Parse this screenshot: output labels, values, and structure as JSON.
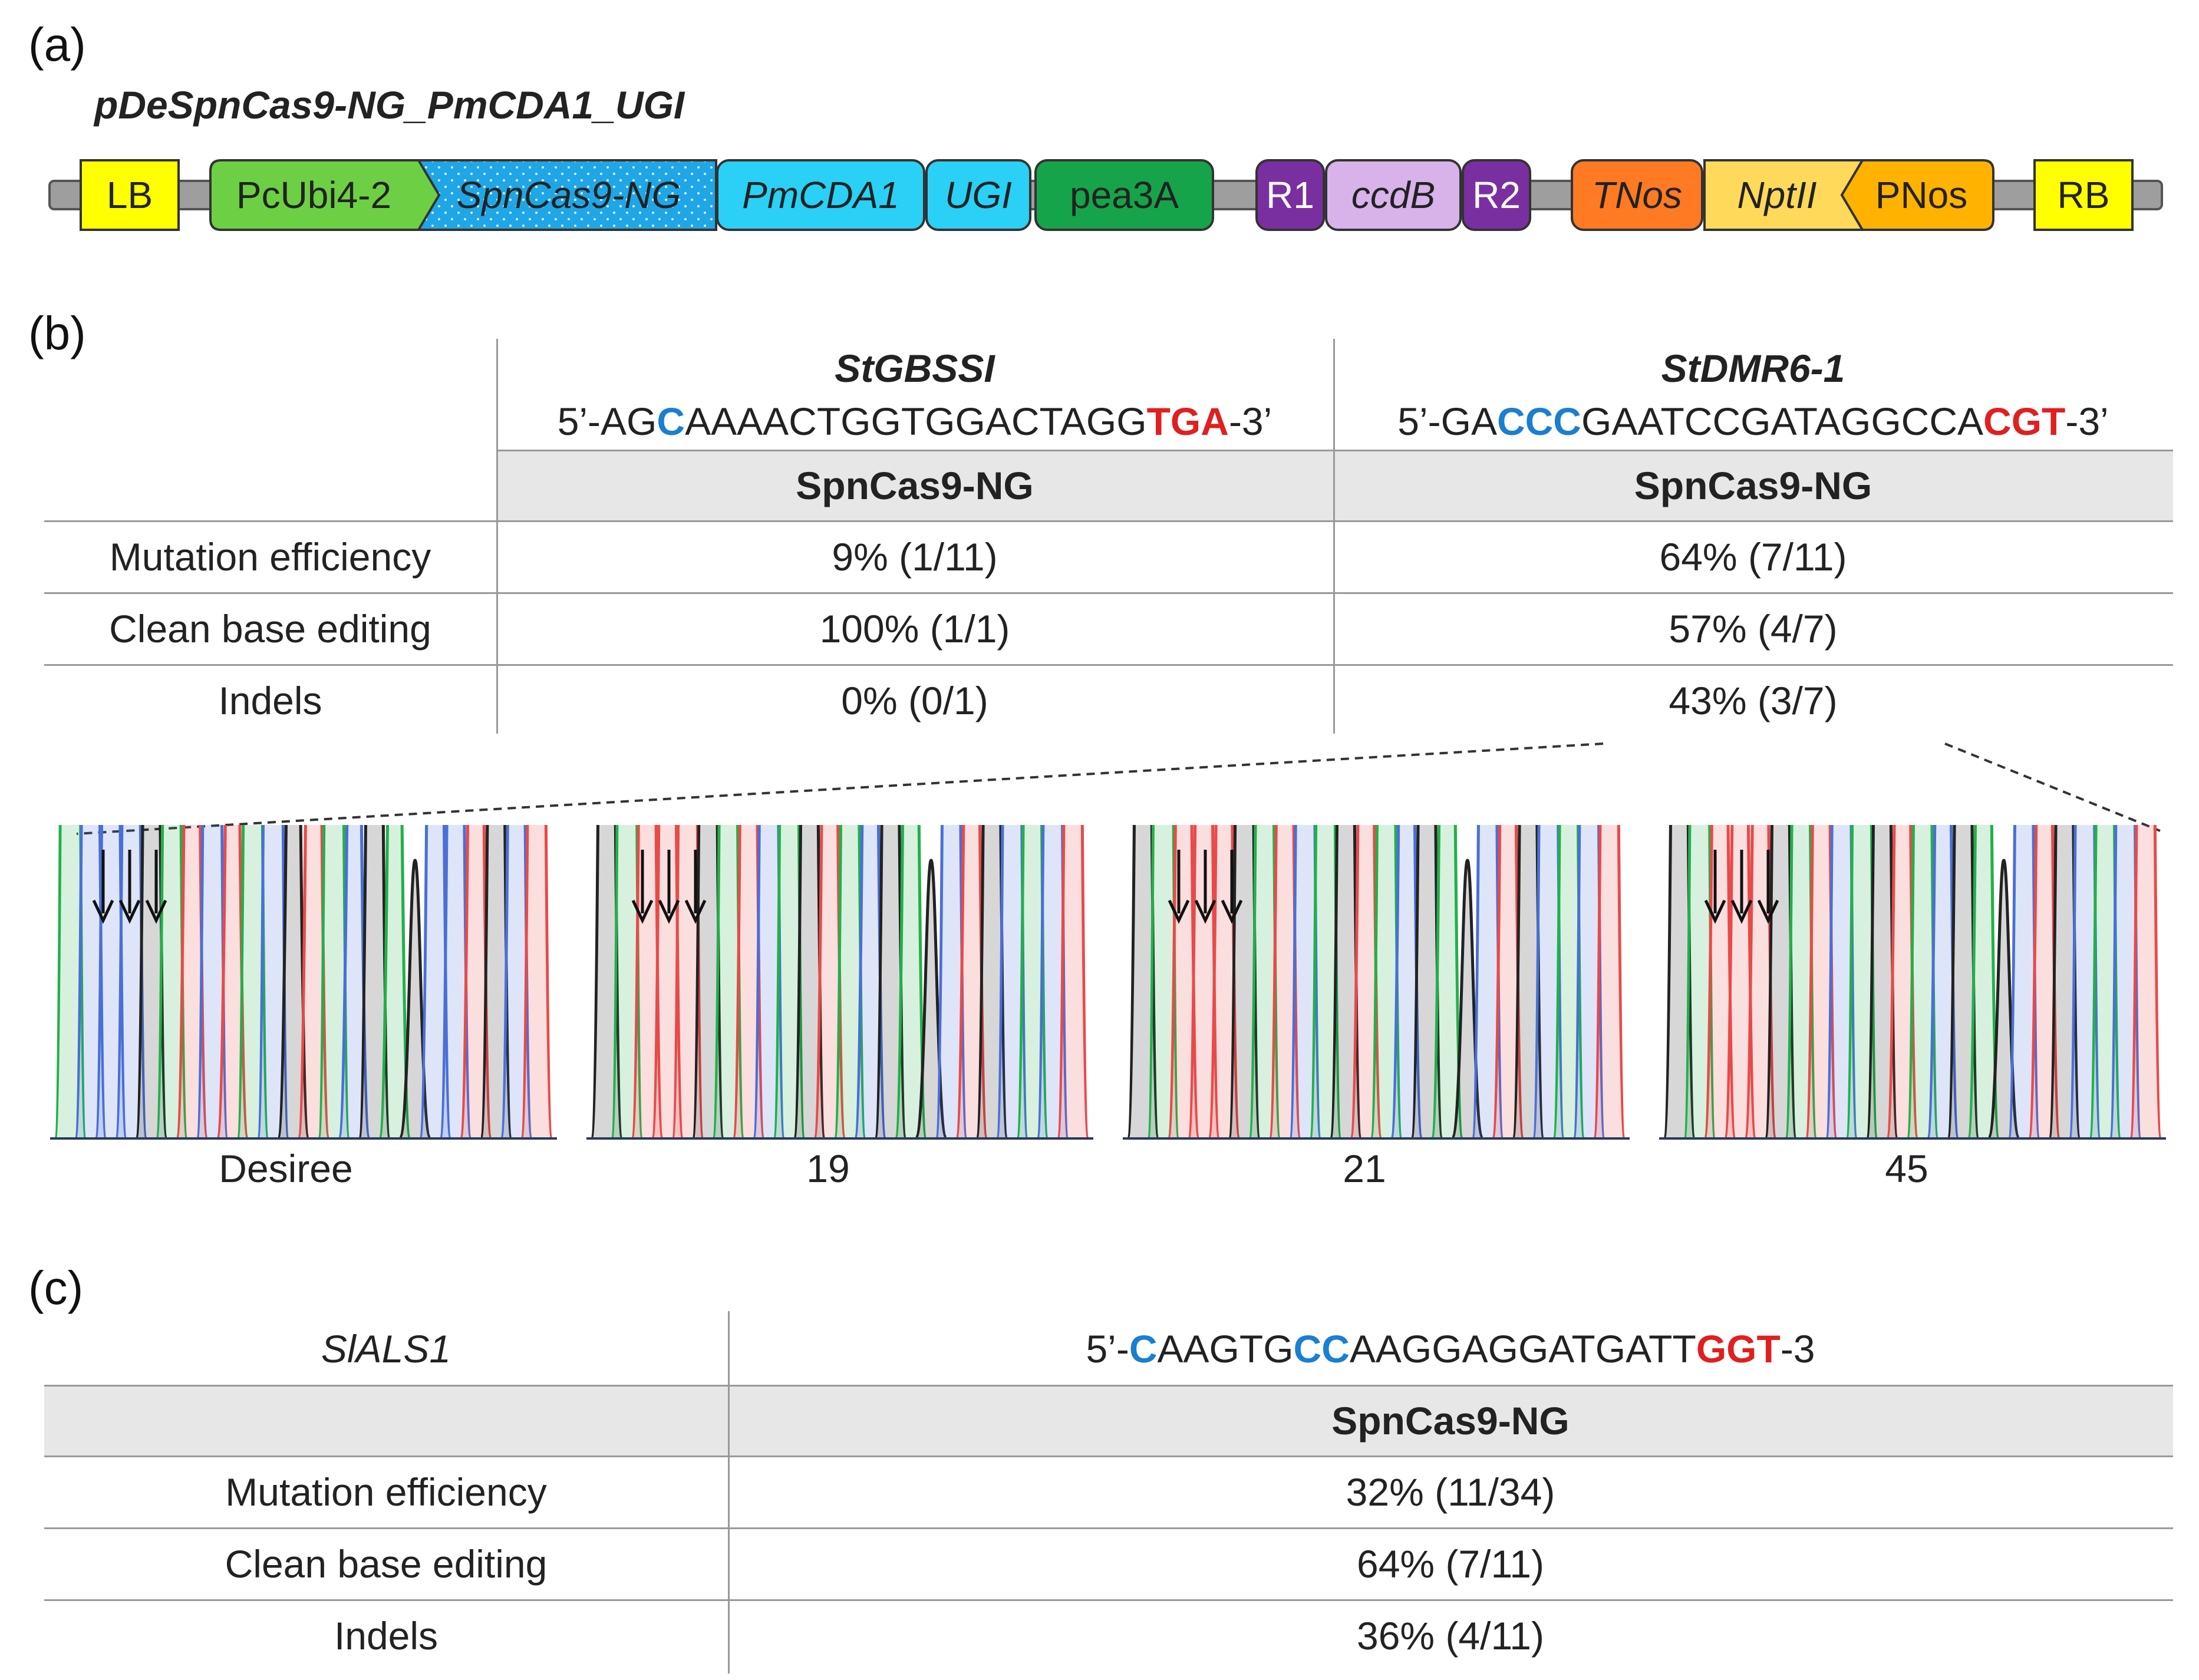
{
  "panels": {
    "a": "(a)",
    "b": "(b)",
    "c": "(c)"
  },
  "construct": {
    "title": "pDeSpnCas9-NG_PmCDA1_UGI",
    "elements": {
      "lb": "LB",
      "pcubi": "PcUbi4-2",
      "spncas9": "SpnCas9-NG",
      "pmcda1": "PmCDA1",
      "ugi": "UGI",
      "pea3a": "pea3A",
      "r1": "R1",
      "ccdb": "ccdB",
      "r2": "R2",
      "tnos": "TNos",
      "nptii": "NptII",
      "pnos": "PNos",
      "rb": "RB"
    },
    "colors": {
      "lb": "#ffff00",
      "pcubi": "#6dd044",
      "spncas9": "#1fa6e6",
      "pmcda1": "#2ad0f5",
      "ugi": "#2ad0f5",
      "pea3a": "#16a44a",
      "r1": "#7a2fa0",
      "ccdb": "#d7b3ea",
      "r2": "#7a2fa0",
      "tnos": "#ff7a22",
      "nptii": "#ffd95a",
      "pnos": "#ffb300",
      "rb": "#ffff00"
    }
  },
  "table_b": {
    "col1": {
      "gene": "StGBSSI",
      "seq_pre": "5’-AG",
      "seq_c": "C",
      "seq_mid": "AAAACTGGTGGACTAGG",
      "seq_pam": "TGA",
      "seq_post": "-3’",
      "enzyme": "SpnCas9-NG"
    },
    "col2": {
      "gene": "StDMR6-1",
      "seq_pre": "5’-GA",
      "seq_c": "CCC",
      "seq_mid": "GAATCCGATAGGCCA",
      "seq_pam": "CGT",
      "seq_post": "-3’",
      "enzyme": "SpnCas9-NG"
    },
    "rows": [
      {
        "label": "Mutation efficiency",
        "v1": "9% (1/11)",
        "v2": "64% (7/11)"
      },
      {
        "label": "Clean base editing",
        "v1": "100% (1/1)",
        "v2": "57% (4/7)"
      },
      {
        "label": "Indels",
        "v1": "0% (0/1)",
        "v2": "43% (3/7)"
      }
    ]
  },
  "chromatograms": [
    {
      "label": "Desiree"
    },
    {
      "label": "19"
    },
    {
      "label": "21"
    },
    {
      "label": "45"
    }
  ],
  "trace_colors": {
    "A": "#22b04a",
    "C": "#4a6fd6",
    "G": "#222222",
    "T": "#e84a4a"
  },
  "table_c": {
    "gene": "SlALS1",
    "seq_pre": "5’-",
    "seq_c1": "C",
    "seq_a": "AAGTG",
    "seq_c2": "CC",
    "seq_b": "AAGGAGGATGATT",
    "seq_pam": "GGT",
    "seq_post": "-3",
    "enzyme": "SpnCas9-NG",
    "rows": [
      {
        "label": "Mutation efficiency",
        "v": "32% (11/34)"
      },
      {
        "label": "Clean base editing",
        "v": "64% (7/11)"
      },
      {
        "label": "Indels",
        "v": "36% (4/11)"
      }
    ]
  }
}
